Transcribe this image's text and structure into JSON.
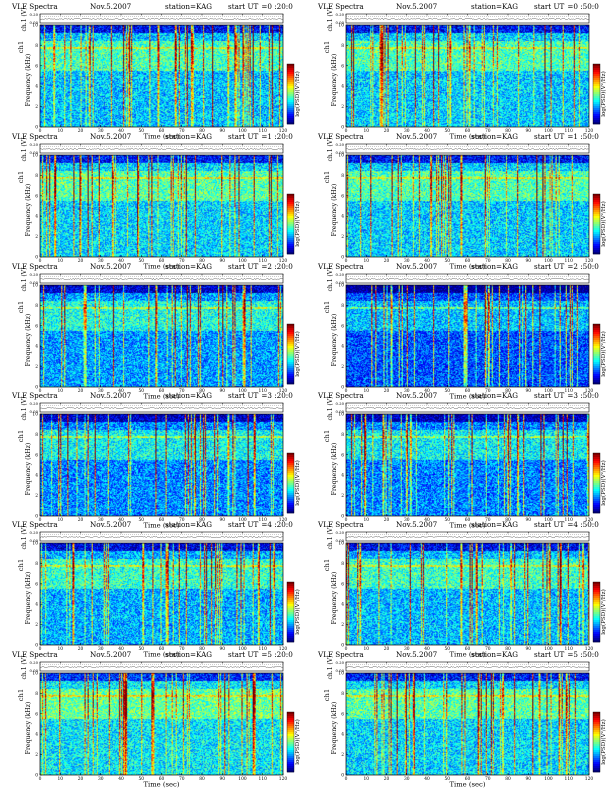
{
  "colors": {
    "colormap": [
      "#00007f",
      "#0000ff",
      "#007fff",
      "#00ffff",
      "#7fff7f",
      "#ffff00",
      "#ff7f00",
      "#ff0000",
      "#7f0000"
    ]
  },
  "chart_data": [
    {
      "type": "heatmap",
      "header": {
        "title": "VLF Spectra",
        "date": "Nov.5.2007",
        "station": "station=KAG",
        "ut_label": "start  UT",
        "ut": "=0 :20:0"
      },
      "ch_label": "ch1",
      "xlabel": "Time  (sec)",
      "ylabel": "Frequency  (kHz)",
      "top_ylabel": "ch.1 (V)",
      "cbar_label": "log(PSD)(V²/Hz)",
      "xlim": [
        0,
        120
      ],
      "ylim": [
        0,
        10
      ],
      "xticks": [
        0,
        10,
        20,
        30,
        40,
        50,
        60,
        70,
        80,
        90,
        100,
        110,
        120
      ],
      "yticks": [
        0,
        2,
        4,
        6,
        8,
        10
      ],
      "top_yticks": [
        "0.00",
        "0.20"
      ]
    },
    {
      "type": "heatmap",
      "header": {
        "title": "VLF Spectra",
        "date": "Nov.5.2007",
        "station": "station=KAG",
        "ut_label": "start  UT",
        "ut": "=0 :50:0"
      },
      "ch_label": "ch1",
      "xlabel": "Time  (sec)",
      "ylabel": "Frequency  (kHz)",
      "top_ylabel": "ch.1 (V)",
      "cbar_label": "log(PSD)(V²/Hz)",
      "xlim": [
        0,
        120
      ],
      "ylim": [
        0,
        10
      ],
      "xticks": [
        0,
        10,
        20,
        30,
        40,
        50,
        60,
        70,
        80,
        90,
        100,
        110,
        120
      ],
      "yticks": [
        0,
        2,
        4,
        6,
        8,
        10
      ],
      "top_yticks": [
        "0.00",
        "0.20"
      ]
    },
    {
      "type": "heatmap",
      "header": {
        "title": "VLF Spectra",
        "date": "Nov.5.2007",
        "station": "station=KAG",
        "ut_label": "start  UT",
        "ut": "=1 :20:0"
      },
      "ch_label": "ch1",
      "xlabel": "Time  (sec)",
      "ylabel": "Frequency  (kHz)",
      "top_ylabel": "ch.1 (V)",
      "cbar_label": "log(PSD)(V²/Hz)",
      "xlim": [
        0,
        120
      ],
      "ylim": [
        0,
        10
      ],
      "xticks": [
        0,
        10,
        20,
        30,
        40,
        50,
        60,
        70,
        80,
        90,
        100,
        110,
        120
      ],
      "yticks": [
        0,
        2,
        4,
        6,
        8,
        10
      ],
      "top_yticks": [
        "0.00",
        "0.20"
      ]
    },
    {
      "type": "heatmap",
      "header": {
        "title": "VLF Spectra",
        "date": "Nov.5.2007",
        "station": "station=KAG",
        "ut_label": "start  UT",
        "ut": "=1 :50:0"
      },
      "ch_label": "ch1",
      "xlabel": "Time  (sec)",
      "ylabel": "Frequency  (kHz)",
      "top_ylabel": "ch.1 (V)",
      "cbar_label": "log(PSD)(V²/Hz)",
      "xlim": [
        0,
        120
      ],
      "ylim": [
        0,
        10
      ],
      "xticks": [
        0,
        10,
        20,
        30,
        40,
        50,
        60,
        70,
        80,
        90,
        100,
        110,
        120
      ],
      "yticks": [
        0,
        2,
        4,
        6,
        8,
        10
      ],
      "top_yticks": [
        "0.00",
        "0.20"
      ]
    },
    {
      "type": "heatmap",
      "header": {
        "title": "VLF Spectra",
        "date": "Nov.5.2007",
        "station": "station=KAG",
        "ut_label": "start  UT",
        "ut": "=2 :20:0"
      },
      "ch_label": "ch1",
      "xlabel": "Time  (sec)",
      "ylabel": "Frequency  (kHz)",
      "top_ylabel": "ch.1 (V)",
      "cbar_label": "log(PSD)(V²/Hz)",
      "xlim": [
        0,
        120
      ],
      "ylim": [
        0,
        10
      ],
      "xticks": [
        0,
        10,
        20,
        30,
        40,
        50,
        60,
        70,
        80,
        90,
        100,
        110,
        120
      ],
      "yticks": [
        0,
        2,
        4,
        6,
        8,
        10
      ],
      "top_yticks": [
        "0.00",
        "0.20"
      ]
    },
    {
      "type": "heatmap",
      "header": {
        "title": "VLF Spectra",
        "date": "Nov.5.2007",
        "station": "station=KAG",
        "ut_label": "start  UT",
        "ut": "=2 :50:0"
      },
      "ch_label": "ch1",
      "xlabel": "Time  (sec)",
      "ylabel": "Frequency  (kHz)",
      "top_ylabel": "ch.1 (V)",
      "cbar_label": "log(PSD)(V²/Hz)",
      "xlim": [
        0,
        120
      ],
      "ylim": [
        0,
        10
      ],
      "xticks": [
        0,
        10,
        20,
        30,
        40,
        50,
        60,
        70,
        80,
        90,
        100,
        110,
        120
      ],
      "yticks": [
        0,
        2,
        4,
        6,
        8,
        10
      ],
      "top_yticks": [
        "0.00",
        "0.20"
      ]
    },
    {
      "type": "heatmap",
      "header": {
        "title": "VLF Spectra",
        "date": "Nov.5.2007",
        "station": "station=KAG",
        "ut_label": "start  UT",
        "ut": "=3 :20:0"
      },
      "ch_label": "ch1",
      "xlabel": "Time  (sec)",
      "ylabel": "Frequency  (kHz)",
      "top_ylabel": "ch.1 (V)",
      "cbar_label": "log(PSD)(V²/Hz)",
      "xlim": [
        0,
        120
      ],
      "ylim": [
        0,
        10
      ],
      "xticks": [
        0,
        10,
        20,
        30,
        40,
        50,
        60,
        70,
        80,
        90,
        100,
        110,
        120
      ],
      "yticks": [
        0,
        2,
        4,
        6,
        8,
        10
      ],
      "top_yticks": [
        "0.00",
        "0.20"
      ]
    },
    {
      "type": "heatmap",
      "header": {
        "title": "VLF Spectra",
        "date": "Nov.5.2007",
        "station": "station=KAG",
        "ut_label": "start  UT",
        "ut": "=3 :50:0"
      },
      "ch_label": "ch1",
      "xlabel": "Time  (sec)",
      "ylabel": "Frequency  (kHz)",
      "top_ylabel": "ch.1 (V)",
      "cbar_label": "log(PSD)(V²/Hz)",
      "xlim": [
        0,
        120
      ],
      "ylim": [
        0,
        10
      ],
      "xticks": [
        0,
        10,
        20,
        30,
        40,
        50,
        60,
        70,
        80,
        90,
        100,
        110,
        120
      ],
      "yticks": [
        0,
        2,
        4,
        6,
        8,
        10
      ],
      "top_yticks": [
        "0.00",
        "0.20"
      ]
    },
    {
      "type": "heatmap",
      "header": {
        "title": "VLF Spectra",
        "date": "Nov.5.2007",
        "station": "station=KAG",
        "ut_label": "start  UT",
        "ut": "=4 :20:0"
      },
      "ch_label": "ch1",
      "xlabel": "Time  (sec)",
      "ylabel": "Frequency  (kHz)",
      "top_ylabel": "ch.1 (V)",
      "cbar_label": "log(PSD)(V²/Hz)",
      "xlim": [
        0,
        120
      ],
      "ylim": [
        0,
        10
      ],
      "xticks": [
        0,
        10,
        20,
        30,
        40,
        50,
        60,
        70,
        80,
        90,
        100,
        110,
        120
      ],
      "yticks": [
        0,
        2,
        4,
        6,
        8,
        10
      ],
      "top_yticks": [
        "0.00",
        "0.20"
      ]
    },
    {
      "type": "heatmap",
      "header": {
        "title": "VLF Spectra",
        "date": "Nov.5.2007",
        "station": "station=KAG",
        "ut_label": "start  UT",
        "ut": "=4 :50:0"
      },
      "ch_label": "ch1",
      "xlabel": "Time  (sec)",
      "ylabel": "Frequency  (kHz)",
      "top_ylabel": "ch.1 (V)",
      "cbar_label": "log(PSD)(V²/Hz)",
      "xlim": [
        0,
        120
      ],
      "ylim": [
        0,
        10
      ],
      "xticks": [
        0,
        10,
        20,
        30,
        40,
        50,
        60,
        70,
        80,
        90,
        100,
        110,
        120
      ],
      "yticks": [
        0,
        2,
        4,
        6,
        8,
        10
      ],
      "top_yticks": [
        "0.00",
        "0.20"
      ]
    },
    {
      "type": "heatmap",
      "header": {
        "title": "VLF Spectra",
        "date": "Nov.5.2007",
        "station": "station=KAG",
        "ut_label": "start  UT",
        "ut": "=5 :20:0"
      },
      "ch_label": "ch1",
      "xlabel": "Time  (sec)",
      "ylabel": "Frequency  (kHz)",
      "top_ylabel": "ch.1 (V)",
      "cbar_label": "log(PSD)(V²/Hz)",
      "xlim": [
        0,
        120
      ],
      "ylim": [
        0,
        10
      ],
      "xticks": [
        0,
        10,
        20,
        30,
        40,
        50,
        60,
        70,
        80,
        90,
        100,
        110,
        120
      ],
      "yticks": [
        0,
        2,
        4,
        6,
        8,
        10
      ],
      "top_yticks": [
        "0.00",
        "0.20"
      ]
    },
    {
      "type": "heatmap",
      "header": {
        "title": "VLF Spectra",
        "date": "Nov.5.2007",
        "station": "station=KAG",
        "ut_label": "start  UT",
        "ut": "=5 :50:0"
      },
      "ch_label": "ch1",
      "xlabel": "Time  (sec)",
      "ylabel": "Frequency  (kHz)",
      "top_ylabel": "ch.1 (V)",
      "cbar_label": "log(PSD)(V²/Hz)",
      "xlim": [
        0,
        120
      ],
      "ylim": [
        0,
        10
      ],
      "xticks": [
        0,
        10,
        20,
        30,
        40,
        50,
        60,
        70,
        80,
        90,
        100,
        110,
        120
      ],
      "yticks": [
        0,
        2,
        4,
        6,
        8,
        10
      ],
      "top_yticks": [
        "0.00",
        "0.20"
      ]
    }
  ]
}
